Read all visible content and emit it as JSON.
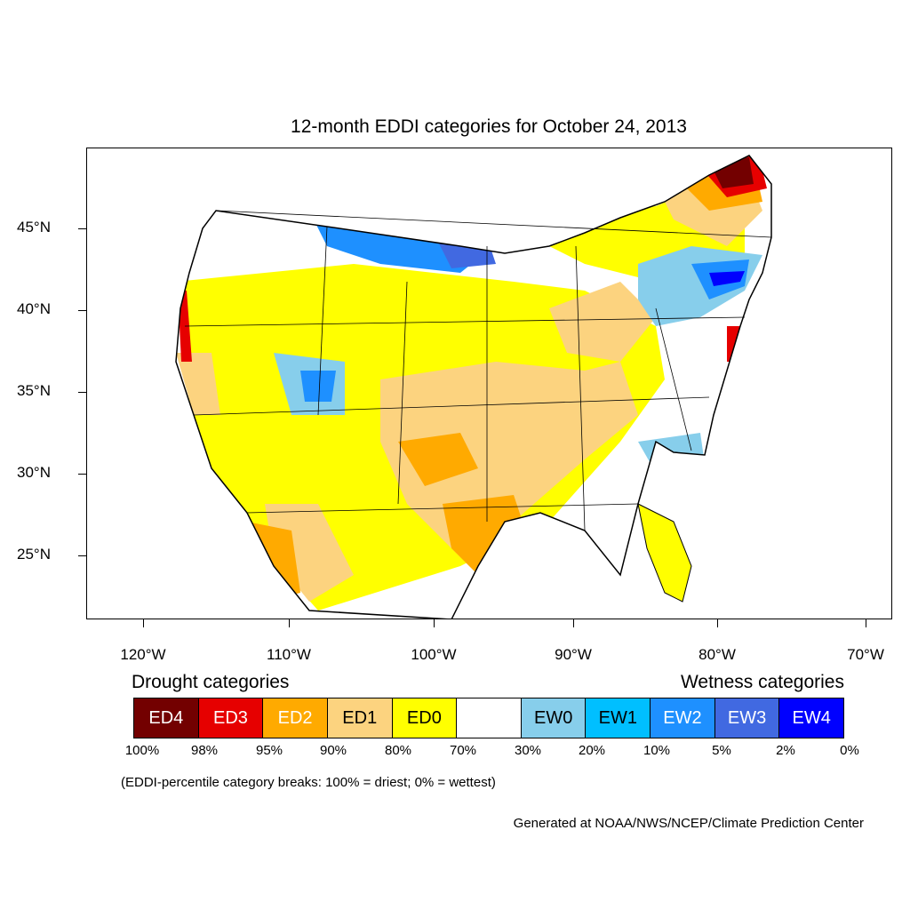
{
  "title": "12-month EDDI categories for October 24, 2013",
  "lat_labels": [
    "45°N",
    "40°N",
    "35°N",
    "30°N",
    "25°N"
  ],
  "lon_labels": [
    "120°W",
    "110°W",
    "100°W",
    "90°W",
    "80°W",
    "70°W"
  ],
  "legend": {
    "drought_heading": "Drought categories",
    "wetness_heading": "Wetness categories",
    "categories": [
      {
        "label": "ED4",
        "color": "#730000",
        "text_color": "#ffffff"
      },
      {
        "label": "ED3",
        "color": "#e60000",
        "text_color": "#ffffff"
      },
      {
        "label": "ED2",
        "color": "#ffaa00",
        "text_color": "#ffffff"
      },
      {
        "label": "ED1",
        "color": "#fcd37f",
        "text_color": "#000000"
      },
      {
        "label": "ED0",
        "color": "#ffff00",
        "text_color": "#000000"
      },
      {
        "label": "",
        "color": "#ffffff",
        "text_color": "#000000"
      },
      {
        "label": "EW0",
        "color": "#87ceeb",
        "text_color": "#000000"
      },
      {
        "label": "EW1",
        "color": "#00bfff",
        "text_color": "#000000"
      },
      {
        "label": "EW2",
        "color": "#1e90ff",
        "text_color": "#ffffff"
      },
      {
        "label": "EW3",
        "color": "#4169e1",
        "text_color": "#ffffff"
      },
      {
        "label": "EW4",
        "color": "#0000ff",
        "text_color": "#ffffff"
      }
    ],
    "breaks": [
      "100%",
      "98%",
      "95%",
      "90%",
      "80%",
      "70%",
      "30%",
      "20%",
      "10%",
      "5%",
      "2%",
      "0%"
    ],
    "note": "(EDDI-percentile category breaks: 100% = driest; 0% = wettest)"
  },
  "credit": "Generated at NOAA/NWS/NCEP/Climate Prediction Center"
}
